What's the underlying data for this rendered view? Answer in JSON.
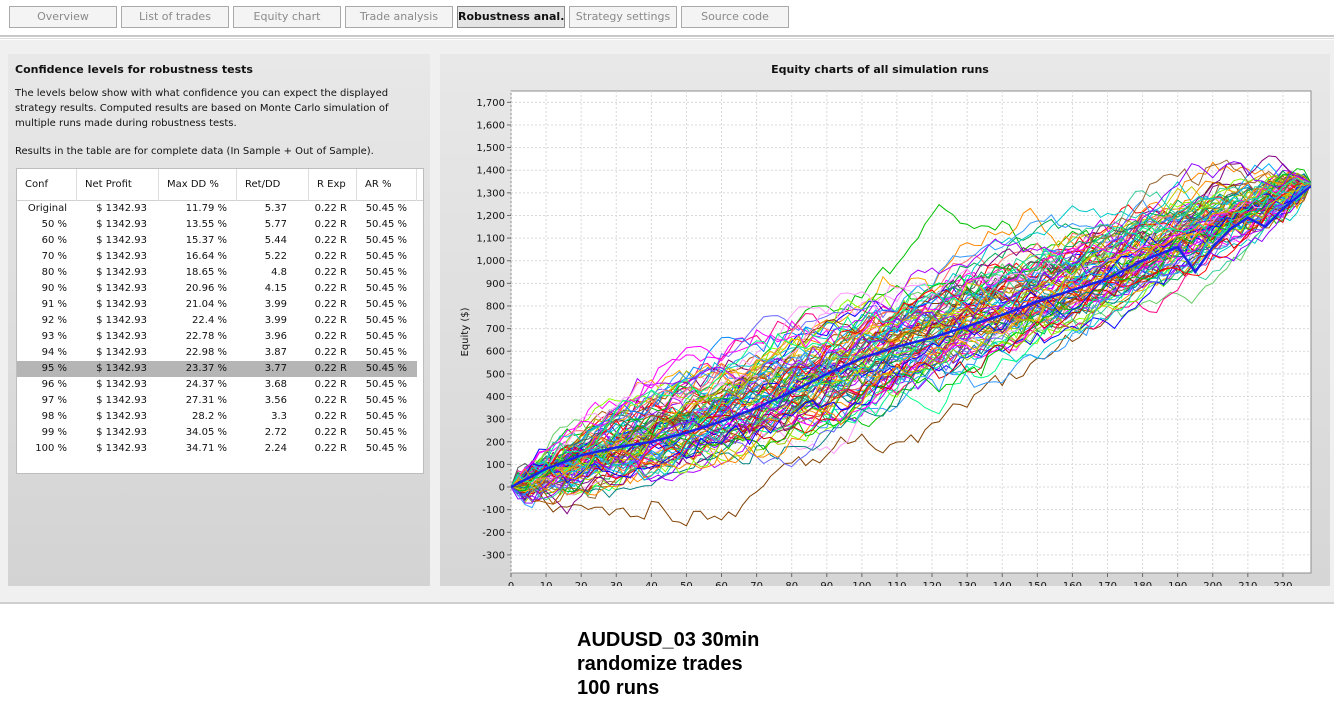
{
  "tabs": [
    {
      "label": "Overview",
      "active": false
    },
    {
      "label": "List of trades",
      "active": false
    },
    {
      "label": "Equity chart",
      "active": false
    },
    {
      "label": "Trade analysis",
      "active": false
    },
    {
      "label": "Robustness anal...",
      "active": true
    },
    {
      "label": "Strategy settings",
      "active": false
    },
    {
      "label": "Source code",
      "active": false
    }
  ],
  "confidence_panel": {
    "title": "Confidence levels for robustness tests",
    "description": "The levels below show with what confidence you can expect the displayed strategy results. Computed results are based on Monte Carlo simulation of multiple runs made during robustness tests.",
    "note": "Results in the table are for complete data (In Sample + Out of Sample).",
    "columns": [
      "Conf",
      "Net Profit",
      "Max DD %",
      "Ret/DD",
      "R Exp",
      "AR %"
    ],
    "selected_row": 10,
    "rows": [
      [
        "Original",
        "$ 1342.93",
        "11.79 %",
        "5.37",
        "0.22 R",
        "50.45 %"
      ],
      [
        "50 %",
        "$ 1342.93",
        "13.55 %",
        "5.77",
        "0.22 R",
        "50.45 %"
      ],
      [
        "60 %",
        "$ 1342.93",
        "15.37 %",
        "5.44",
        "0.22 R",
        "50.45 %"
      ],
      [
        "70 %",
        "$ 1342.93",
        "16.64 %",
        "5.22",
        "0.22 R",
        "50.45 %"
      ],
      [
        "80 %",
        "$ 1342.93",
        "18.65 %",
        "4.8",
        "0.22 R",
        "50.45 %"
      ],
      [
        "90 %",
        "$ 1342.93",
        "20.96 %",
        "4.15",
        "0.22 R",
        "50.45 %"
      ],
      [
        "91 %",
        "$ 1342.93",
        "21.04 %",
        "3.99",
        "0.22 R",
        "50.45 %"
      ],
      [
        "92 %",
        "$ 1342.93",
        "22.4 %",
        "3.99",
        "0.22 R",
        "50.45 %"
      ],
      [
        "93 %",
        "$ 1342.93",
        "22.78 %",
        "3.96",
        "0.22 R",
        "50.45 %"
      ],
      [
        "94 %",
        "$ 1342.93",
        "22.98 %",
        "3.87",
        "0.22 R",
        "50.45 %"
      ],
      [
        "95 %",
        "$ 1342.93",
        "23.37 %",
        "3.77",
        "0.22 R",
        "50.45 %"
      ],
      [
        "96 %",
        "$ 1342.93",
        "24.37 %",
        "3.68",
        "0.22 R",
        "50.45 %"
      ],
      [
        "97 %",
        "$ 1342.93",
        "27.31 %",
        "3.56",
        "0.22 R",
        "50.45 %"
      ],
      [
        "98 %",
        "$ 1342.93",
        "28.2 %",
        "3.3",
        "0.22 R",
        "50.45 %"
      ],
      [
        "99 %",
        "$ 1342.93",
        "34.05 %",
        "2.72",
        "0.22 R",
        "50.45 %"
      ],
      [
        "100 %",
        "$ 1342.93",
        "34.71 %",
        "2.24",
        "0.22 R",
        "50.45 %"
      ]
    ]
  },
  "chart_data": {
    "type": "line",
    "title": "Equity charts of all simulation runs",
    "xlabel": "",
    "ylabel": "Equity ($)",
    "xlim": [
      0,
      228
    ],
    "ylim": [
      -380,
      1750
    ],
    "x_ticks": [
      0,
      10,
      20,
      30,
      40,
      50,
      60,
      70,
      80,
      90,
      100,
      110,
      120,
      130,
      140,
      150,
      160,
      170,
      180,
      190,
      200,
      210,
      220
    ],
    "y_ticks": [
      -300,
      -200,
      -100,
      0,
      100,
      200,
      300,
      400,
      500,
      600,
      700,
      800,
      900,
      1000,
      1100,
      1200,
      1300,
      1400,
      1500,
      1600,
      1700
    ],
    "grid": true,
    "legend": "none",
    "series_count": 100,
    "num_trades": 228,
    "final_value": 1342.93,
    "highlighted_series": {
      "color": "#1a22e8",
      "points": [
        [
          0,
          0
        ],
        [
          10,
          80
        ],
        [
          20,
          140
        ],
        [
          30,
          175
        ],
        [
          40,
          200
        ],
        [
          50,
          240
        ],
        [
          60,
          290
        ],
        [
          70,
          350
        ],
        [
          80,
          420
        ],
        [
          90,
          500
        ],
        [
          100,
          570
        ],
        [
          110,
          620
        ],
        [
          120,
          660
        ],
        [
          130,
          710
        ],
        [
          140,
          760
        ],
        [
          150,
          820
        ],
        [
          160,
          870
        ],
        [
          170,
          920
        ],
        [
          180,
          1000
        ],
        [
          185,
          1030
        ],
        [
          190,
          1060
        ],
        [
          195,
          950
        ],
        [
          200,
          1060
        ],
        [
          205,
          1140
        ],
        [
          210,
          1190
        ],
        [
          215,
          1150
        ],
        [
          220,
          1230
        ],
        [
          228,
          1330
        ]
      ]
    },
    "annotation_lines": [
      "AUDUSD_03 30min",
      "randomize trades",
      "100 runs"
    ]
  }
}
